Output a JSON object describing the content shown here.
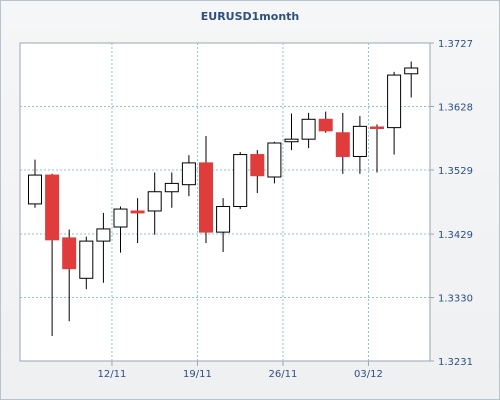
{
  "chart_data": {
    "type": "candlestick",
    "title": "EURUSD1month",
    "ylim": [
      1.3231,
      1.3727
    ],
    "y_ticks": [
      "1.3231",
      "1.3330",
      "1.3429",
      "1.3529",
      "1.3628",
      "1.3727"
    ],
    "x_tick_labels": [
      "12/11",
      "19/11",
      "26/11",
      "03/12"
    ],
    "x_tick_candle_index": [
      4.5,
      9.5,
      14.5,
      19.5
    ],
    "grid": true,
    "up_color": "#ffffff",
    "down_color": "#e03c3c",
    "candles": [
      {
        "open": 1.3476,
        "high": 1.3545,
        "low": 1.347,
        "close": 1.3521
      },
      {
        "open": 1.3521,
        "high": 1.3523,
        "low": 1.327,
        "close": 1.342
      },
      {
        "open": 1.3423,
        "high": 1.3436,
        "low": 1.3293,
        "close": 1.3375
      },
      {
        "open": 1.336,
        "high": 1.3425,
        "low": 1.3343,
        "close": 1.3418
      },
      {
        "open": 1.3418,
        "high": 1.3462,
        "low": 1.3353,
        "close": 1.3437
      },
      {
        "open": 1.344,
        "high": 1.3472,
        "low": 1.34,
        "close": 1.3468
      },
      {
        "open": 1.3465,
        "high": 1.3485,
        "low": 1.3415,
        "close": 1.3462
      },
      {
        "open": 1.3465,
        "high": 1.3525,
        "low": 1.3428,
        "close": 1.3495
      },
      {
        "open": 1.3495,
        "high": 1.3525,
        "low": 1.347,
        "close": 1.3508
      },
      {
        "open": 1.3506,
        "high": 1.3552,
        "low": 1.3488,
        "close": 1.354
      },
      {
        "open": 1.354,
        "high": 1.3582,
        "low": 1.3415,
        "close": 1.3432
      },
      {
        "open": 1.3432,
        "high": 1.3485,
        "low": 1.3401,
        "close": 1.3472
      },
      {
        "open": 1.3472,
        "high": 1.3557,
        "low": 1.3468,
        "close": 1.3553
      },
      {
        "open": 1.3553,
        "high": 1.356,
        "low": 1.3493,
        "close": 1.352
      },
      {
        "open": 1.3518,
        "high": 1.3573,
        "low": 1.3508,
        "close": 1.3571
      },
      {
        "open": 1.3573,
        "high": 1.3617,
        "low": 1.356,
        "close": 1.3577
      },
      {
        "open": 1.3577,
        "high": 1.3618,
        "low": 1.3563,
        "close": 1.3608
      },
      {
        "open": 1.3608,
        "high": 1.362,
        "low": 1.3587,
        "close": 1.359
      },
      {
        "open": 1.3587,
        "high": 1.3618,
        "low": 1.3523,
        "close": 1.355
      },
      {
        "open": 1.355,
        "high": 1.3613,
        "low": 1.3523,
        "close": 1.3597
      },
      {
        "open": 1.3596,
        "high": 1.36,
        "low": 1.3525,
        "close": 1.3594
      },
      {
        "open": 1.3595,
        "high": 1.3682,
        "low": 1.3553,
        "close": 1.3677
      },
      {
        "open": 1.3679,
        "high": 1.3698,
        "low": 1.3642,
        "close": 1.3688
      }
    ]
  }
}
